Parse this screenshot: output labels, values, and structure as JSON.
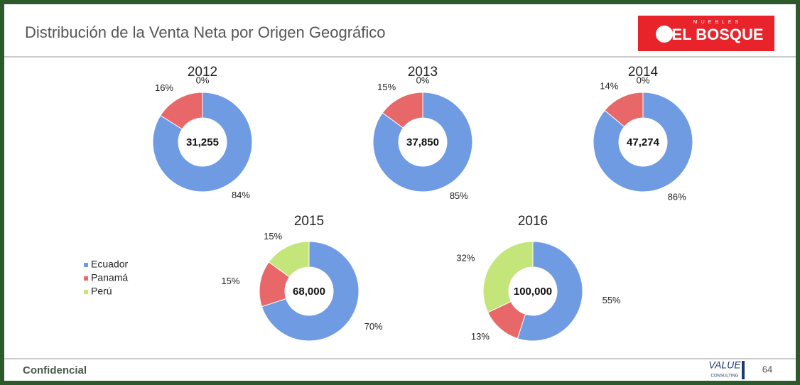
{
  "header": {
    "title": "Distribución de la Venta Neta por Origen Geográfico",
    "logo": {
      "small": "MUEBLES",
      "brand": "EL BOSQUE"
    }
  },
  "chart_data": [
    {
      "type": "donut",
      "title": "2012",
      "center_label": "31,255",
      "categories": [
        "Ecuador",
        "Panamá",
        "Perú"
      ],
      "colors": [
        "#6f9be3",
        "#e8686a",
        "#c3e57a"
      ],
      "values": [
        84,
        16,
        0
      ],
      "value_labels": [
        "84%",
        "16%",
        "0%"
      ]
    },
    {
      "type": "donut",
      "title": "2013",
      "center_label": "37,850",
      "categories": [
        "Ecuador",
        "Panamá",
        "Perú"
      ],
      "colors": [
        "#6f9be3",
        "#e8686a",
        "#c3e57a"
      ],
      "values": [
        85,
        15,
        0
      ],
      "value_labels": [
        "85%",
        "15%",
        "0%"
      ]
    },
    {
      "type": "donut",
      "title": "2014",
      "center_label": "47,274",
      "categories": [
        "Ecuador",
        "Panamá",
        "Perú"
      ],
      "colors": [
        "#6f9be3",
        "#e8686a",
        "#c3e57a"
      ],
      "values": [
        86,
        14,
        0
      ],
      "value_labels": [
        "86%",
        "14%",
        "0%"
      ]
    },
    {
      "type": "donut",
      "title": "2015",
      "center_label": "68,000",
      "categories": [
        "Ecuador",
        "Panamá",
        "Perú"
      ],
      "colors": [
        "#6f9be3",
        "#e8686a",
        "#c3e57a"
      ],
      "values": [
        70,
        15,
        15
      ],
      "value_labels": [
        "70%",
        "15%",
        "15%"
      ],
      "legend": "left"
    },
    {
      "type": "donut",
      "title": "2016",
      "center_label": "100,000",
      "categories": [
        "Ecuador",
        "Panamá",
        "Perú"
      ],
      "colors": [
        "#6f9be3",
        "#e8686a",
        "#c3e57a"
      ],
      "values": [
        55,
        13,
        32
      ],
      "value_labels": [
        "55%",
        "13%",
        "32%"
      ]
    }
  ],
  "footer": {
    "left": "Confidencial",
    "logo": {
      "main": "VALUE",
      "sub": "CONSULTING"
    },
    "page": "64"
  }
}
